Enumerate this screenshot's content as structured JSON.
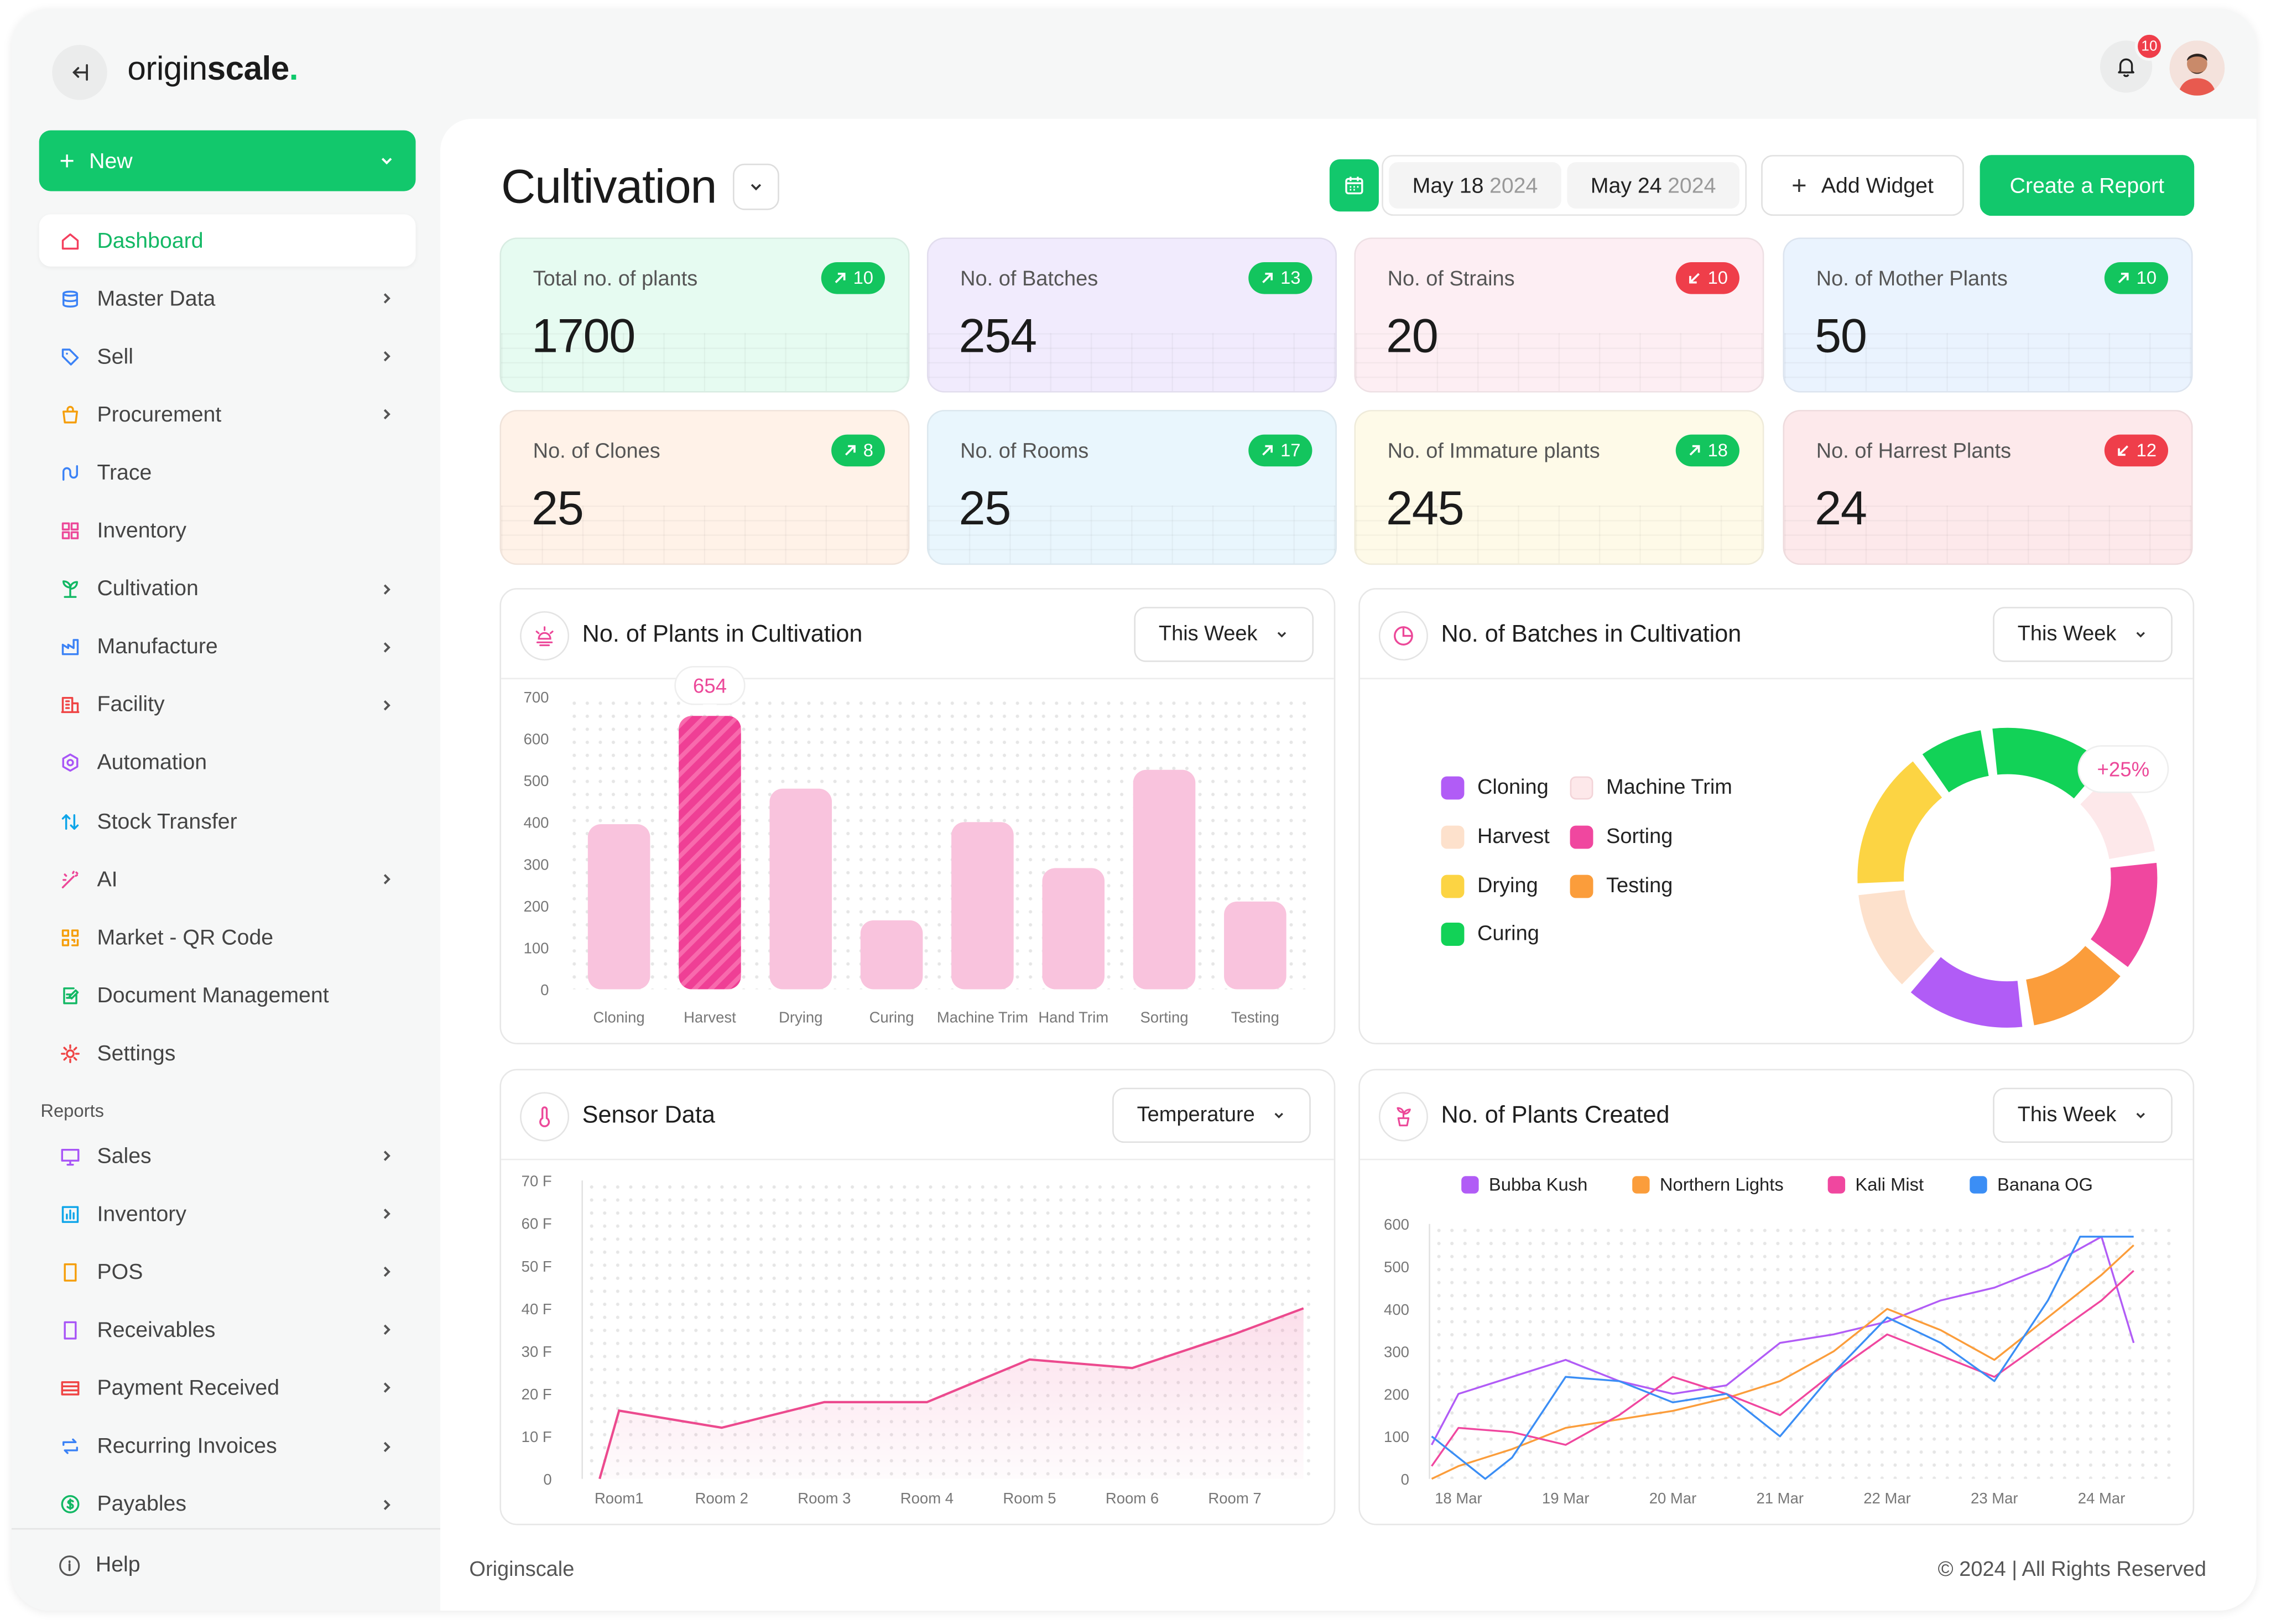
{
  "brand": {
    "name_prefix": "origin",
    "name_suffix": "scale",
    "dot": "."
  },
  "header": {
    "notification_count": "10"
  },
  "sidebar": {
    "new_label": "New",
    "items": [
      {
        "label": "Dashboard",
        "icon": "home-icon",
        "chevron": false,
        "active": true,
        "color": "#f43f5e"
      },
      {
        "label": "Master Data",
        "icon": "database-icon",
        "chevron": true,
        "color": "#3b82f6"
      },
      {
        "label": "Sell",
        "icon": "tag-icon",
        "chevron": true,
        "color": "#3b82f6"
      },
      {
        "label": "Procurement",
        "icon": "shopping-bag-icon",
        "chevron": true,
        "color": "#f59e0b"
      },
      {
        "label": "Trace",
        "icon": "trace-icon",
        "chevron": false,
        "color": "#3b82f6"
      },
      {
        "label": "Inventory",
        "icon": "grid-icon",
        "chevron": false,
        "color": "#ec4899"
      },
      {
        "label": "Cultivation",
        "icon": "plant-icon",
        "chevron": true,
        "color": "#12b864"
      },
      {
        "label": "Manufacture",
        "icon": "factory-icon",
        "chevron": true,
        "color": "#3b82f6"
      },
      {
        "label": "Facility",
        "icon": "building-icon",
        "chevron": true,
        "color": "#ef4444"
      },
      {
        "label": "Automation",
        "icon": "hexagon-icon",
        "chevron": false,
        "color": "#a855f7"
      },
      {
        "label": "Stock Transfer",
        "icon": "transfer-icon",
        "chevron": false,
        "color": "#0ea5e9"
      },
      {
        "label": "AI",
        "icon": "magic-wand-icon",
        "chevron": true,
        "color": "#ec4899"
      },
      {
        "label": "Market - QR Code",
        "icon": "qr-code-icon",
        "chevron": false,
        "color": "#f59e0b"
      },
      {
        "label": "Document Management",
        "icon": "document-edit-icon",
        "chevron": false,
        "color": "#12b864"
      },
      {
        "label": "Settings",
        "icon": "gear-icon",
        "chevron": false,
        "color": "#ef4444"
      }
    ],
    "reports_heading": "Reports",
    "report_items": [
      {
        "label": "Sales",
        "icon": "monitor-icon",
        "chevron": true,
        "color": "#a855f7"
      },
      {
        "label": "Inventory",
        "icon": "bar-chart-icon",
        "chevron": true,
        "color": "#0ea5e9"
      },
      {
        "label": "POS",
        "icon": "tablet-icon",
        "chevron": true,
        "color": "#f59e0b"
      },
      {
        "label": "Receivables",
        "icon": "receipt-icon",
        "chevron": true,
        "color": "#a855f7"
      },
      {
        "label": "Payment Received",
        "icon": "card-icon",
        "chevron": true,
        "color": "#ef4444"
      },
      {
        "label": "Recurring Invoices",
        "icon": "repeat-icon",
        "chevron": true,
        "color": "#3b82f6"
      },
      {
        "label": "Payables",
        "icon": "dollar-coin-icon",
        "chevron": true,
        "color": "#12b864"
      }
    ],
    "help_label": "Help"
  },
  "page": {
    "title": "Cultivation",
    "date_from": "May 18",
    "date_from_year": "2024",
    "date_to": "May 24",
    "date_to_year": "2024",
    "add_widget": "Add Widget",
    "create_report": "Create a Report"
  },
  "stats": [
    {
      "label": "Total no. of plants",
      "value": "1700",
      "delta": "10",
      "trend": "up",
      "bg": "#e6fbf1"
    },
    {
      "label": "No. of Batches",
      "value": "254",
      "delta": "13",
      "trend": "up",
      "bg": "#f1ebfd"
    },
    {
      "label": "No. of Strains",
      "value": "20",
      "delta": "10",
      "trend": "down",
      "bg": "#fdeef3"
    },
    {
      "label": "No. of Mother Plants",
      "value": "50",
      "delta": "10",
      "trend": "up",
      "bg": "#eaf3fe"
    },
    {
      "label": "No. of Clones",
      "value": "25",
      "delta": "8",
      "trend": "up",
      "bg": "#fff2e8"
    },
    {
      "label": "No. of Rooms",
      "value": "25",
      "delta": "17",
      "trend": "up",
      "bg": "#e9f6fd"
    },
    {
      "label": "No. of Immature plants",
      "value": "245",
      "delta": "18",
      "trend": "up",
      "bg": "#fefae8"
    },
    {
      "label": "No. of Harrest Plants",
      "value": "24",
      "delta": "12",
      "trend": "down",
      "bg": "#fde9eb"
    }
  ],
  "panels": {
    "plants": {
      "title": "No. of Plants in Cultivation",
      "filter": "This Week",
      "tooltip": "654"
    },
    "batches": {
      "title": "No. of Batches in Cultivation",
      "filter": "This Week",
      "badge": "+25%"
    },
    "sensor": {
      "title": "Sensor Data",
      "filter": "Temperature"
    },
    "created": {
      "title": "No. of Plants Created",
      "filter": "This Week"
    }
  },
  "chart_data": [
    {
      "type": "bar",
      "title": "No. of Plants in Cultivation",
      "categories": [
        "Cloning",
        "Harvest",
        "Drying",
        "Curing",
        "Machine Trim",
        "Hand Trim",
        "Sorting",
        "Testing"
      ],
      "values": [
        395,
        654,
        480,
        165,
        400,
        290,
        525,
        210
      ],
      "ylim": [
        0,
        700
      ],
      "yticks": [
        "700",
        "600",
        "500",
        "400",
        "300",
        "200",
        "100",
        "0"
      ],
      "highlight_index": 1,
      "colors": {
        "bar": "#f9c3dd",
        "highlight": "#ef3f95"
      }
    },
    {
      "type": "pie",
      "title": "No. of Batches in Cultivation",
      "legend": [
        {
          "name": "Cloning",
          "color": "#b15cf6"
        },
        {
          "name": "Machine Trim",
          "color": "#fde8ea"
        },
        {
          "name": "Harvest",
          "color": "#fde1cc"
        },
        {
          "name": "Sorting",
          "color": "#f0479f"
        },
        {
          "name": "Drying",
          "color": "#fcd443"
        },
        {
          "name": "Testing",
          "color": "#fb9d3b"
        },
        {
          "name": "Curing",
          "color": "#12d257"
        }
      ],
      "values": [
        14,
        11,
        13,
        12,
        14,
        12,
        16,
        8
      ],
      "segment_names": [
        "Curing",
        "Machine Trim",
        "Sorting",
        "Testing",
        "Cloning",
        "Harvest",
        "Drying",
        "Curing"
      ],
      "legend_placement": "left"
    },
    {
      "type": "area",
      "title": "Sensor Data",
      "categories": [
        "Room1",
        "Room 2",
        "Room 3",
        "Room 4",
        "Room 5",
        "Room 6",
        "Room 7"
      ],
      "x": [
        0,
        0.25,
        1,
        2,
        3,
        4,
        5,
        6,
        6.9
      ],
      "y": [
        0,
        16,
        12,
        18,
        18,
        28,
        26,
        34,
        40
      ],
      "ylim": [
        0,
        70
      ],
      "yticks": [
        "70 F",
        "60 F",
        "50 F",
        "40 F",
        "30 F",
        "20 F",
        "10 F",
        "0"
      ],
      "color": "#ec4a8e"
    },
    {
      "type": "line",
      "title": "No. of Plants Created",
      "x": [
        "18 Mar",
        "19 Mar",
        "20 Mar",
        "21 Mar",
        "22 Mar",
        "23 Mar",
        "24 Mar"
      ],
      "ylim": [
        0,
        600
      ],
      "yticks": [
        "600",
        "500",
        "400",
        "300",
        "200",
        "100",
        "0"
      ],
      "series": [
        {
          "name": "Bubba Kush",
          "color": "#b15cf6",
          "x": [
            -0.25,
            0,
            1,
            1.5,
            2,
            2.5,
            3,
            3.5,
            4,
            4.5,
            5,
            5.5,
            6,
            6.3
          ],
          "y": [
            80,
            200,
            280,
            230,
            200,
            220,
            320,
            340,
            370,
            420,
            450,
            500,
            570,
            320
          ]
        },
        {
          "name": "Northern Lights",
          "color": "#fb9d3b",
          "x": [
            -0.25,
            0,
            0.5,
            1,
            1.5,
            2,
            2.5,
            3,
            3.5,
            4,
            4.5,
            5,
            5.5,
            6,
            6.3
          ],
          "y": [
            0,
            30,
            70,
            120,
            140,
            160,
            190,
            230,
            300,
            400,
            350,
            280,
            380,
            480,
            550
          ]
        },
        {
          "name": "Kali Mist",
          "color": "#f0479f",
          "x": [
            -0.25,
            0,
            0.5,
            1,
            1.5,
            2,
            2.5,
            3,
            3.5,
            4,
            4.5,
            5,
            5.5,
            6,
            6.3
          ],
          "y": [
            30,
            120,
            110,
            80,
            150,
            240,
            200,
            150,
            250,
            340,
            290,
            240,
            330,
            420,
            490
          ]
        },
        {
          "name": "Banana OG",
          "color": "#3b8ef5",
          "x": [
            -0.25,
            0,
            0.25,
            0.5,
            1,
            1.5,
            2,
            2.5,
            3,
            3.5,
            4,
            4.5,
            5,
            5.5,
            5.8,
            6.3
          ],
          "y": [
            100,
            50,
            0,
            50,
            240,
            230,
            180,
            200,
            100,
            250,
            380,
            320,
            230,
            420,
            570,
            570
          ]
        }
      ]
    }
  ]
}
